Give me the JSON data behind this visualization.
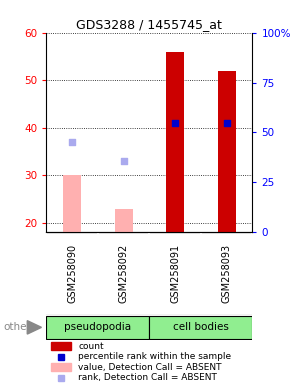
{
  "title": "GDS3288 / 1455745_at",
  "samples": [
    "GSM258090",
    "GSM258092",
    "GSM258091",
    "GSM258093"
  ],
  "ylim_left": [
    18,
    60
  ],
  "yticks_left": [
    20,
    30,
    40,
    50,
    60
  ],
  "yticks_right": [
    0,
    25,
    50,
    75,
    100
  ],
  "ytick_labels_right": [
    "0",
    "25",
    "50",
    "75",
    "100%"
  ],
  "bar_values": [
    null,
    null,
    56,
    52
  ],
  "bar_absent_values": [
    30,
    23,
    null,
    null
  ],
  "rank_dot_values": [
    null,
    null,
    41,
    41
  ],
  "rank_absent_dot_values": [
    37,
    33,
    null,
    null
  ],
  "bar_color": "#cc0000",
  "bar_absent_color": "#ffb0b0",
  "rank_dot_color": "#0000cc",
  "rank_absent_dot_color": "#aaaaee",
  "bar_width": 0.35,
  "legend_items": [
    {
      "label": "count",
      "color": "#cc0000",
      "type": "rect"
    },
    {
      "label": "percentile rank within the sample",
      "color": "#0000cc",
      "type": "dot"
    },
    {
      "label": "value, Detection Call = ABSENT",
      "color": "#ffb0b0",
      "type": "rect"
    },
    {
      "label": "rank, Detection Call = ABSENT",
      "color": "#aaaaee",
      "type": "dot"
    }
  ],
  "group_label_left": "pseudopodia",
  "group_label_right": "cell bodies",
  "group_color": "#90ee90",
  "sample_bg_color": "#d0d0d0",
  "plot_bg_color": "#ffffff"
}
